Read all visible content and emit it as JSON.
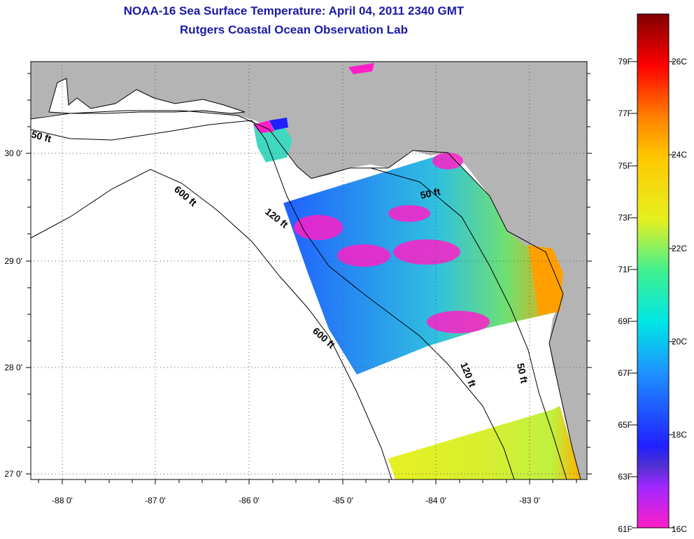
{
  "title": {
    "line1": "NOAA-16 Sea Surface Temperature:  April 04, 2011 2340 GMT",
    "line2": "Rutgers Coastal Ocean Observation Lab"
  },
  "map": {
    "region": "Gulf of Mexico / Florida Big Bend",
    "lon_labels": [
      "-88 0'",
      "-87 0'",
      "-86 0'",
      "-85 0'",
      "-84 0'",
      "-83 0'"
    ],
    "lat_labels": [
      "30 0'",
      "29 0'",
      "28 0'",
      "27 0'"
    ],
    "contour_labels": [
      "50 ft",
      "600 ft",
      "120 ft",
      "50 ft",
      "600 ft",
      "120 ft",
      "50 ft"
    ],
    "colors": {
      "land": "#b4b4b4",
      "ocean": "#ffffff",
      "grid": "#555555"
    }
  },
  "colorbar": {
    "fahrenheit_labels": [
      "79F",
      "77F",
      "75F",
      "73F",
      "71F",
      "69F",
      "67F",
      "65F",
      "63F",
      "61F"
    ],
    "celsius_labels": [
      "26C",
      "24C",
      "22C",
      "20C",
      "18C",
      "16C"
    ],
    "range_c": [
      16,
      27
    ],
    "colors": [
      "#ff1ec8",
      "#a028ff",
      "#2020ff",
      "#1e90ff",
      "#00e6e6",
      "#40f090",
      "#e6f020",
      "#ffc800",
      "#ff8000",
      "#ff0000",
      "#800000"
    ]
  }
}
